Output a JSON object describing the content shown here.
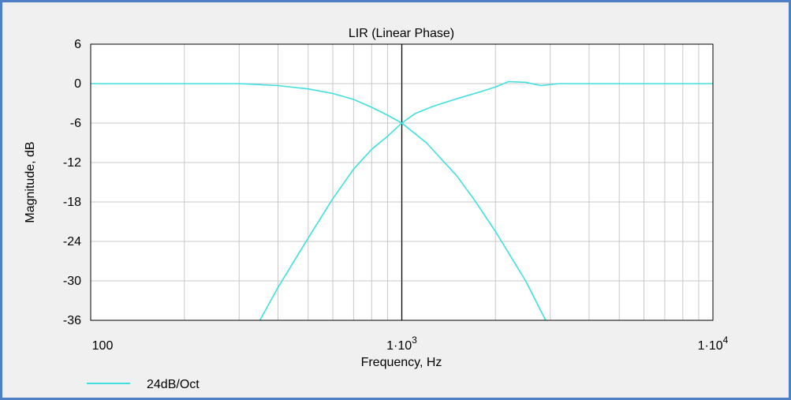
{
  "chart_data": {
    "type": "line",
    "title": "LIR (Linear Phase)",
    "xlabel": "Frequency, Hz",
    "ylabel": "Magnitude, dB",
    "x_scale": "log",
    "xlim": [
      100,
      10000
    ],
    "ylim": [
      -36,
      6
    ],
    "grid": true,
    "legend_position": "bottom-left",
    "x_tick_labels": [
      {
        "value": 100,
        "base": "100",
        "exp": ""
      },
      {
        "value": 1000,
        "base": "1·10",
        "exp": "3"
      },
      {
        "value": 10000,
        "base": "1·10",
        "exp": "4"
      }
    ],
    "y_ticks": [
      6,
      0,
      -6,
      -12,
      -18,
      -24,
      -30,
      -36
    ],
    "y_tick_labels": [
      "6",
      "0",
      "-6",
      "-12",
      "-18",
      "-24",
      "-30",
      "-36"
    ],
    "cursor_x": 1000,
    "legend_label": "24dB/Oct",
    "line_color": "#40e0e0",
    "series": [
      {
        "name": "24dB/Oct",
        "role": "low-pass",
        "x": [
          100,
          200,
          300,
          400,
          500,
          600,
          700,
          800,
          900,
          1000,
          1200,
          1500,
          1700,
          2000,
          2500,
          2900
        ],
        "y": [
          0,
          0,
          0,
          -0.3,
          -0.8,
          -1.5,
          -2.4,
          -3.6,
          -4.8,
          -6,
          -9,
          -14,
          -17.5,
          -22.5,
          -30,
          -36
        ]
      },
      {
        "name": "24dB/Oct",
        "role": "high-pass",
        "x": [
          350,
          400,
          500,
          600,
          700,
          800,
          900,
          1000,
          1100,
          1250,
          1500,
          1800,
          2000,
          2200,
          2500,
          2800,
          3200,
          5000,
          10000
        ],
        "y": [
          -36,
          -31,
          -23.5,
          -17.5,
          -13,
          -10,
          -8,
          -6,
          -4.6,
          -3.5,
          -2.3,
          -1.2,
          -0.5,
          0.3,
          0.2,
          -0.3,
          0,
          0,
          0
        ]
      }
    ]
  }
}
